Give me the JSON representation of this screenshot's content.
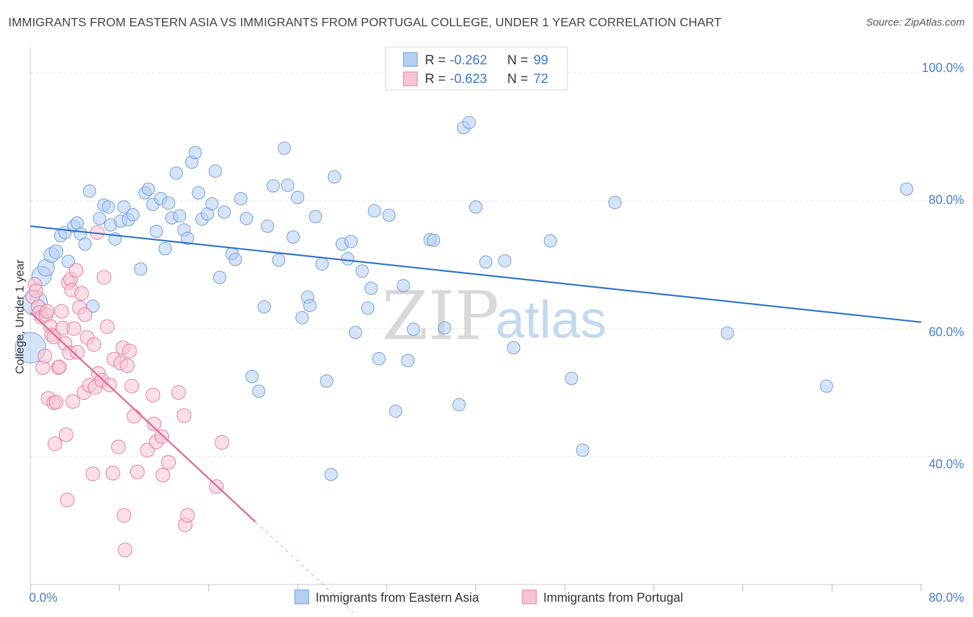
{
  "header": {
    "title": "IMMIGRANTS FROM EASTERN ASIA VS IMMIGRANTS FROM PORTUGAL COLLEGE, UNDER 1 YEAR CORRELATION CHART",
    "source": "Source: ZipAtlas.com"
  },
  "watermark": {
    "zip": "ZIP",
    "atlas": "atlas"
  },
  "chart_data": {
    "type": "scatter",
    "title": "IMMIGRANTS FROM EASTERN ASIA VS IMMIGRANTS FROM PORTUGAL COLLEGE, UNDER 1 YEAR CORRELATION CHART",
    "xlabel": "",
    "ylabel": "College, Under 1 year",
    "xlim": [
      0,
      80
    ],
    "ylim": [
      20,
      104
    ],
    "x_tick_labels": [
      "0.0%",
      "80.0%"
    ],
    "y_ticks": [
      40,
      60,
      80,
      100
    ],
    "y_tick_labels": [
      "40.0%",
      "60.0%",
      "80.0%",
      "100.0%"
    ],
    "grid": true,
    "legend_stats": [
      {
        "r_label": "R = ",
        "r_value": "-0.262",
        "n_label": "N = ",
        "n_value": "99"
      },
      {
        "r_label": "R = ",
        "r_value": "-0.623",
        "n_label": "N = ",
        "n_value": "72"
      }
    ],
    "series": [
      {
        "name": "Immigrants from Eastern Asia",
        "color": "#6a9ee0",
        "fill": "#b6cef2",
        "trend": {
          "x": [
            0,
            80
          ],
          "y": [
            76.0,
            61.0
          ],
          "color": "#2f72cc"
        },
        "points": [
          [
            0.0,
            57.0,
            22
          ],
          [
            0.4,
            64.0,
            18
          ],
          [
            1.0,
            68.2,
            14
          ],
          [
            1.4,
            69.5,
            12
          ],
          [
            1.9,
            71.5,
            11
          ],
          [
            2.3,
            72.0,
            10
          ],
          [
            2.7,
            74.5,
            9
          ],
          [
            3.1,
            75.0,
            9
          ],
          [
            3.4,
            70.5,
            9
          ],
          [
            3.9,
            76.0,
            9
          ],
          [
            4.2,
            76.5,
            9
          ],
          [
            4.5,
            74.8,
            9
          ],
          [
            4.9,
            73.2,
            9
          ],
          [
            5.3,
            81.5,
            9
          ],
          [
            5.6,
            63.5,
            9
          ],
          [
            6.2,
            77.2,
            9
          ],
          [
            6.6,
            79.3,
            9
          ],
          [
            7.0,
            79.0,
            9
          ],
          [
            7.2,
            76.2,
            9
          ],
          [
            7.6,
            74.0,
            9
          ],
          [
            8.1,
            76.8,
            9
          ],
          [
            8.4,
            79.0,
            9
          ],
          [
            8.8,
            77.0,
            9
          ],
          [
            9.2,
            77.8,
            9
          ],
          [
            9.9,
            69.3,
            9
          ],
          [
            10.3,
            81.2,
            9
          ],
          [
            10.6,
            81.8,
            9
          ],
          [
            11.0,
            79.4,
            9
          ],
          [
            11.3,
            75.2,
            9
          ],
          [
            11.7,
            80.3,
            9
          ],
          [
            12.1,
            72.5,
            9
          ],
          [
            12.4,
            79.6,
            9
          ],
          [
            12.7,
            77.3,
            9
          ],
          [
            13.1,
            84.3,
            9
          ],
          [
            13.4,
            77.6,
            9
          ],
          [
            13.8,
            75.4,
            9
          ],
          [
            14.1,
            74.1,
            9
          ],
          [
            14.5,
            86.0,
            9
          ],
          [
            14.8,
            87.5,
            9
          ],
          [
            15.1,
            81.2,
            9
          ],
          [
            15.4,
            77.1,
            9
          ],
          [
            15.9,
            77.9,
            9
          ],
          [
            16.3,
            79.5,
            9
          ],
          [
            16.6,
            84.6,
            9
          ],
          [
            17.0,
            68.0,
            9
          ],
          [
            17.4,
            78.2,
            9
          ],
          [
            18.1,
            71.7,
            9
          ],
          [
            18.4,
            70.8,
            9
          ],
          [
            18.9,
            80.3,
            9
          ],
          [
            19.4,
            77.2,
            9
          ],
          [
            19.9,
            52.5,
            9
          ],
          [
            20.5,
            50.2,
            9
          ],
          [
            21.0,
            63.4,
            9
          ],
          [
            21.3,
            76.0,
            9
          ],
          [
            21.8,
            82.3,
            9
          ],
          [
            22.3,
            70.7,
            9
          ],
          [
            22.8,
            88.2,
            9
          ],
          [
            23.1,
            82.4,
            9
          ],
          [
            23.6,
            74.3,
            9
          ],
          [
            24.0,
            80.5,
            9
          ],
          [
            24.4,
            61.7,
            9
          ],
          [
            24.9,
            64.9,
            9
          ],
          [
            25.1,
            63.6,
            9
          ],
          [
            25.6,
            77.5,
            9
          ],
          [
            26.2,
            70.1,
            9
          ],
          [
            26.6,
            51.8,
            9
          ],
          [
            27.0,
            37.2,
            9
          ],
          [
            27.3,
            83.7,
            9
          ],
          [
            28.0,
            73.2,
            9
          ],
          [
            28.5,
            70.9,
            9
          ],
          [
            28.8,
            73.6,
            9
          ],
          [
            29.2,
            59.4,
            9
          ],
          [
            29.8,
            69.0,
            9
          ],
          [
            30.3,
            63.2,
            9
          ],
          [
            30.6,
            66.3,
            9
          ],
          [
            30.9,
            78.4,
            9
          ],
          [
            31.3,
            55.3,
            9
          ],
          [
            32.2,
            77.7,
            9
          ],
          [
            32.8,
            47.1,
            9
          ],
          [
            33.5,
            66.7,
            9
          ],
          [
            33.9,
            55.0,
            9
          ],
          [
            34.4,
            59.9,
            9
          ],
          [
            35.9,
            73.9,
            9
          ],
          [
            36.2,
            73.8,
            9
          ],
          [
            37.2,
            60.1,
            9
          ],
          [
            38.5,
            48.1,
            9
          ],
          [
            38.9,
            91.4,
            9
          ],
          [
            39.4,
            92.2,
            9
          ],
          [
            40.9,
            70.4,
            9
          ],
          [
            42.6,
            70.6,
            9
          ],
          [
            43.4,
            57.0,
            9
          ],
          [
            46.7,
            73.7,
            9
          ],
          [
            48.6,
            52.2,
            9
          ],
          [
            49.6,
            41.0,
            9
          ],
          [
            52.5,
            79.7,
            9
          ],
          [
            62.6,
            59.3,
            9
          ],
          [
            71.5,
            51.0,
            9
          ],
          [
            78.7,
            81.8,
            9
          ],
          [
            40.0,
            79.0,
            9
          ]
        ]
      },
      {
        "name": "Immigrants from Portugal",
        "color": "#e87aa0",
        "fill": "#f6c4d4",
        "trend": {
          "x": [
            0,
            20.2
          ],
          "y": [
            62.5,
            29.8
          ],
          "color": "#e2638f"
        },
        "trend_dashed": {
          "x": [
            20.2,
            29.0
          ],
          "y": [
            29.8,
            15.6
          ]
        },
        "points": [
          [
            0.2,
            65.0,
            10
          ],
          [
            0.4,
            66.9,
            10
          ],
          [
            0.5,
            65.9,
            10
          ],
          [
            0.7,
            63.4,
            10
          ],
          [
            0.8,
            62.5,
            10
          ],
          [
            1.0,
            61.8,
            10
          ],
          [
            1.1,
            53.9,
            10
          ],
          [
            1.3,
            55.7,
            10
          ],
          [
            1.4,
            62.1,
            10
          ],
          [
            1.5,
            62.7,
            10
          ],
          [
            1.6,
            49.1,
            10
          ],
          [
            1.8,
            60.3,
            10
          ],
          [
            1.9,
            59.0,
            10
          ],
          [
            2.1,
            48.4,
            10
          ],
          [
            2.1,
            58.7,
            10
          ],
          [
            2.2,
            42.0,
            10
          ],
          [
            2.3,
            48.5,
            10
          ],
          [
            2.5,
            53.9,
            10
          ],
          [
            2.6,
            54.0,
            10
          ],
          [
            2.8,
            62.7,
            10
          ],
          [
            2.9,
            60.1,
            10
          ],
          [
            3.1,
            57.7,
            10
          ],
          [
            3.2,
            43.4,
            10
          ],
          [
            3.3,
            33.2,
            10
          ],
          [
            3.4,
            67.2,
            10
          ],
          [
            3.5,
            56.2,
            10
          ],
          [
            3.6,
            67.7,
            10
          ],
          [
            3.7,
            66.0,
            10
          ],
          [
            3.8,
            48.6,
            10
          ],
          [
            3.9,
            60.0,
            10
          ],
          [
            4.1,
            69.1,
            10
          ],
          [
            4.2,
            56.3,
            10
          ],
          [
            4.4,
            63.3,
            10
          ],
          [
            4.6,
            65.5,
            10
          ],
          [
            4.8,
            50.0,
            10
          ],
          [
            4.9,
            62.2,
            10
          ],
          [
            5.1,
            58.6,
            10
          ],
          [
            5.3,
            51.1,
            10
          ],
          [
            5.6,
            37.3,
            10
          ],
          [
            5.7,
            57.5,
            10
          ],
          [
            5.8,
            50.8,
            10
          ],
          [
            6.0,
            75.0,
            10
          ],
          [
            6.1,
            53.0,
            10
          ],
          [
            6.4,
            51.9,
            10
          ],
          [
            6.6,
            68.0,
            10
          ],
          [
            6.9,
            60.3,
            10
          ],
          [
            7.1,
            51.2,
            10
          ],
          [
            7.4,
            37.4,
            10
          ],
          [
            7.5,
            55.2,
            10
          ],
          [
            7.9,
            41.5,
            10
          ],
          [
            8.1,
            54.6,
            10
          ],
          [
            8.3,
            57.0,
            10
          ],
          [
            8.4,
            30.8,
            10
          ],
          [
            8.5,
            25.4,
            10
          ],
          [
            8.7,
            54.2,
            10
          ],
          [
            8.9,
            56.5,
            10
          ],
          [
            9.1,
            51.0,
            10
          ],
          [
            9.3,
            46.3,
            10
          ],
          [
            9.6,
            37.6,
            10
          ],
          [
            10.5,
            41.0,
            10
          ],
          [
            11.0,
            49.6,
            10
          ],
          [
            11.1,
            45.1,
            10
          ],
          [
            11.3,
            42.3,
            10
          ],
          [
            11.8,
            43.1,
            10
          ],
          [
            11.9,
            37.1,
            10
          ],
          [
            12.4,
            39.1,
            10
          ],
          [
            13.3,
            50.0,
            10
          ],
          [
            13.8,
            46.4,
            10
          ],
          [
            13.9,
            29.3,
            10
          ],
          [
            14.1,
            30.8,
            10
          ],
          [
            16.7,
            35.3,
            10
          ],
          [
            17.2,
            42.2,
            10
          ]
        ]
      }
    ]
  },
  "legend": {
    "series1_label": "Immigrants from Eastern Asia",
    "series2_label": "Immigrants from Portugal"
  }
}
